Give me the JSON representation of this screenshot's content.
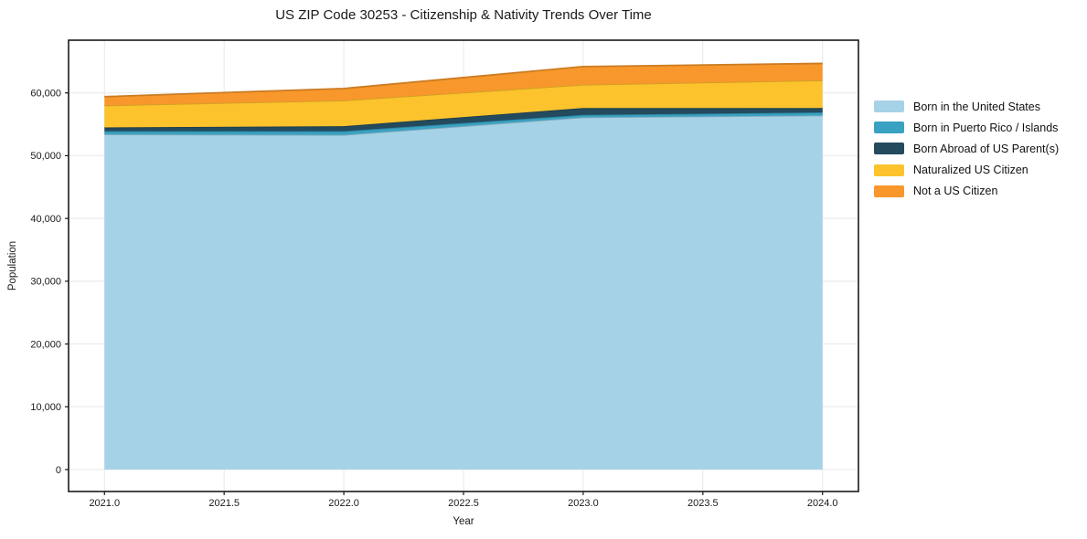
{
  "figure": {
    "title": "US ZIP Code 30253 - Citizenship & Nativity Trends Over Time",
    "xlabel": "Year",
    "ylabel": "Population"
  },
  "chart_data": {
    "type": "area",
    "stacked": true,
    "title": "US ZIP Code 30253 - Citizenship & Nativity Trends Over Time",
    "xlabel": "Year",
    "ylabel": "Population",
    "x": [
      2021,
      2022,
      2023,
      2024
    ],
    "series": [
      {
        "name": "Born in the United States",
        "color": "#a6d2e7",
        "values": [
          53400,
          53300,
          56100,
          56400
        ]
      },
      {
        "name": "Born in Puerto Rico / Islands",
        "color": "#39a2c2",
        "values": [
          500,
          600,
          400,
          500
        ]
      },
      {
        "name": "Born Abroad of US Parent(s)",
        "color": "#234a5d",
        "values": [
          600,
          800,
          1100,
          700
        ]
      },
      {
        "name": "Naturalized US Citizen",
        "color": "#fcc32d",
        "values": [
          3500,
          4100,
          3700,
          4400
        ]
      },
      {
        "name": "Not a US Citizen",
        "color": "#f8972b",
        "values": [
          1400,
          1900,
          2900,
          2700
        ]
      }
    ],
    "stacked_totals": [
      59400,
      60700,
      64200,
      64700
    ],
    "xlim": [
      2020.85,
      2024.15
    ],
    "ylim": [
      -3500,
      68400
    ],
    "xticks": [
      2021.0,
      2021.5,
      2022.0,
      2022.5,
      2023.0,
      2023.5,
      2024.0
    ],
    "xtick_labels": [
      "2021.0",
      "2021.5",
      "2022.0",
      "2022.5",
      "2023.0",
      "2023.5",
      "2024.0"
    ],
    "yticks": [
      0,
      10000,
      20000,
      30000,
      40000,
      50000,
      60000
    ],
    "ytick_labels": [
      "0",
      "10,000",
      "20,000",
      "30,000",
      "40,000",
      "50,000",
      "60,000"
    ],
    "grid": true,
    "legend_position": "right",
    "colors": {
      "background": "#ffffff",
      "grid": "#e8e8e8",
      "spine": "#1a1a1a",
      "text": "#1a1a1a"
    }
  }
}
